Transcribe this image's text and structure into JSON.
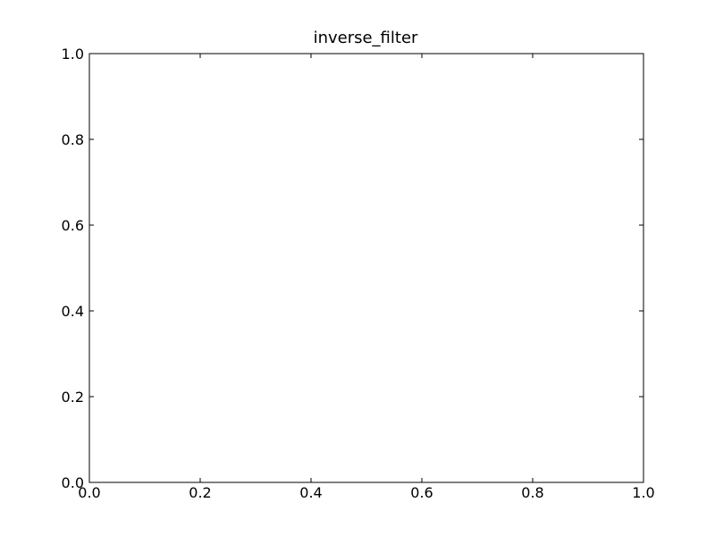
{
  "chart_data": {
    "type": "line",
    "title": "inverse_filter",
    "xlabel": "",
    "ylabel": "",
    "xlim": [
      0.0,
      1.0
    ],
    "ylim": [
      0.0,
      1.0
    ],
    "x_ticks": [
      0.0,
      0.2,
      0.4,
      0.6,
      0.8,
      1.0
    ],
    "y_ticks": [
      0.0,
      0.2,
      0.4,
      0.6,
      0.8,
      1.0
    ],
    "x_tick_labels": [
      "0.0",
      "0.2",
      "0.4",
      "0.6",
      "0.8",
      "1.0"
    ],
    "y_tick_labels": [
      "0.0",
      "0.2",
      "0.4",
      "0.6",
      "0.8",
      "1.0"
    ],
    "series": [],
    "grid": false,
    "colors": {
      "axes": "#000000",
      "background": "#ffffff"
    }
  }
}
